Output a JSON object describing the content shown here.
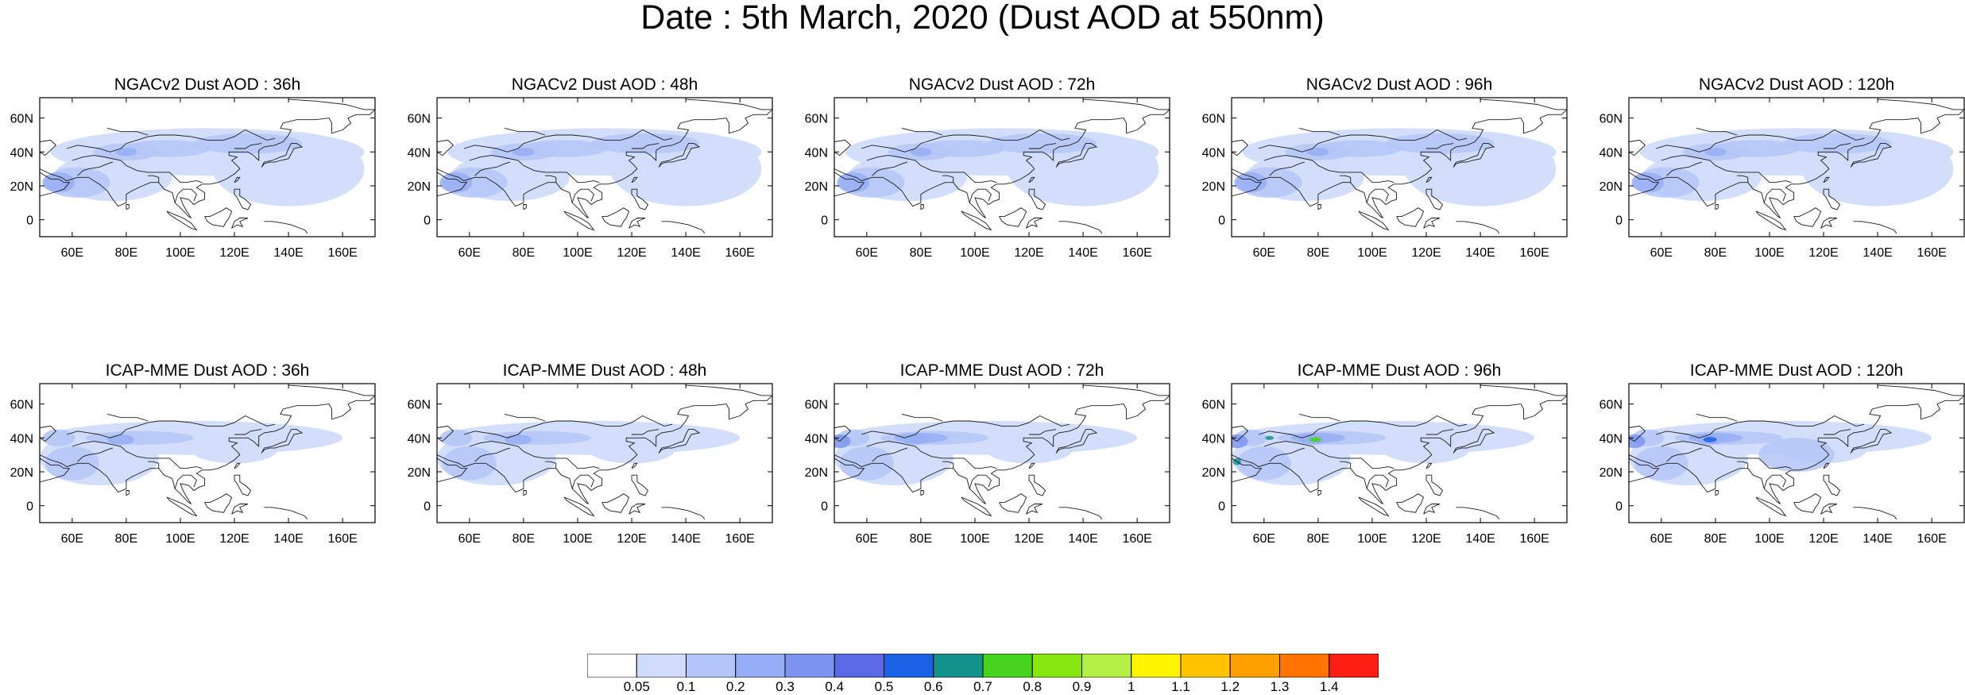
{
  "title": "Date : 5th March, 2020 (Dust AOD at 550nm)",
  "panels": [
    {
      "title": "NGACv2 Dust AOD : 36h",
      "row": 0,
      "col": 0
    },
    {
      "title": "NGACv2 Dust AOD : 48h",
      "row": 0,
      "col": 1
    },
    {
      "title": "NGACv2 Dust AOD : 72h",
      "row": 0,
      "col": 2
    },
    {
      "title": "NGACv2 Dust AOD : 96h",
      "row": 0,
      "col": 3
    },
    {
      "title": "NGACv2 Dust AOD : 120h",
      "row": 0,
      "col": 4
    },
    {
      "title": "ICAP-MME Dust AOD : 36h",
      "row": 1,
      "col": 0
    },
    {
      "title": "ICAP-MME Dust AOD : 48h",
      "row": 1,
      "col": 1
    },
    {
      "title": "ICAP-MME Dust AOD : 72h",
      "row": 1,
      "col": 2
    },
    {
      "title": "ICAP-MME Dust AOD : 96h",
      "row": 1,
      "col": 3
    },
    {
      "title": "ICAP-MME Dust AOD : 120h",
      "row": 1,
      "col": 4
    }
  ],
  "map": {
    "lon_range": [
      48,
      172
    ],
    "lat_range": [
      -10,
      72
    ],
    "lon_ticks": [
      "60E",
      "80E",
      "100E",
      "120E",
      "140E",
      "160E"
    ],
    "lon_tick_values": [
      60,
      80,
      100,
      120,
      140,
      160
    ],
    "lat_ticks": [
      "60N",
      "40N",
      "20N",
      "0"
    ],
    "lat_tick_values": [
      60,
      40,
      20,
      0
    ]
  },
  "colorbar": {
    "colors": [
      "#ffffff",
      "#d1dcfa",
      "#b4c6f7",
      "#96aef5",
      "#7d95f0",
      "#5a69e6",
      "#1b63e6",
      "#14928c",
      "#46d31c",
      "#86e60e",
      "#b4f044",
      "#fff500",
      "#ffc300",
      "#ffa000",
      "#ff7300",
      "#ff1e14"
    ],
    "labels": [
      "0.05",
      "0.1",
      "0.2",
      "0.3",
      "0.4",
      "0.5",
      "0.6",
      "0.7",
      "0.8",
      "0.9",
      "1",
      "1.1",
      "1.2",
      "1.3",
      "1.4"
    ]
  }
}
